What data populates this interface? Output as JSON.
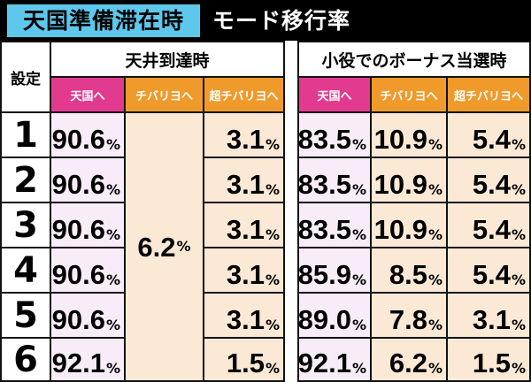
{
  "header": {
    "title": "天国準備滞在時",
    "subtitle": "モード移行率"
  },
  "table": {
    "settei_header": "設定",
    "group1_header": "天井到達時",
    "group2_header": "小役でのボーナス当選時",
    "sub_headers": [
      "天国へ",
      "チバリヨへ",
      "超チバリヨへ"
    ],
    "percent_sign": "%",
    "merged_chibariyo_value": "6.2",
    "rows": [
      {
        "setting": "1",
        "g1_tengoku": "90.6",
        "g1_cho": "3.1",
        "g2_tengoku": "83.5",
        "g2_chibariyo": "10.9",
        "g2_cho": "5.4"
      },
      {
        "setting": "2",
        "g1_tengoku": "90.6",
        "g1_cho": "3.1",
        "g2_tengoku": "83.5",
        "g2_chibariyo": "10.9",
        "g2_cho": "5.4"
      },
      {
        "setting": "3",
        "g1_tengoku": "90.6",
        "g1_cho": "3.1",
        "g2_tengoku": "83.5",
        "g2_chibariyo": "10.9",
        "g2_cho": "5.4"
      },
      {
        "setting": "4",
        "g1_tengoku": "90.6",
        "g1_cho": "3.1",
        "g2_tengoku": "85.9",
        "g2_chibariyo": "8.5",
        "g2_cho": "5.4"
      },
      {
        "setting": "5",
        "g1_tengoku": "90.6",
        "g1_cho": "3.1",
        "g2_tengoku": "89.0",
        "g2_chibariyo": "7.8",
        "g2_cho": "3.1"
      },
      {
        "setting": "6",
        "g1_tengoku": "92.1",
        "g1_cho": "1.5",
        "g2_tengoku": "92.1",
        "g2_chibariyo": "6.2",
        "g2_cho": "1.5"
      }
    ]
  },
  "colors": {
    "title_bg": "#5ec8ec",
    "pink_header": "#e23a8e",
    "orange_header": "#f09a2b",
    "lavender_cell": "#f7ecf8",
    "peach_cell": "#fbe9d6"
  }
}
